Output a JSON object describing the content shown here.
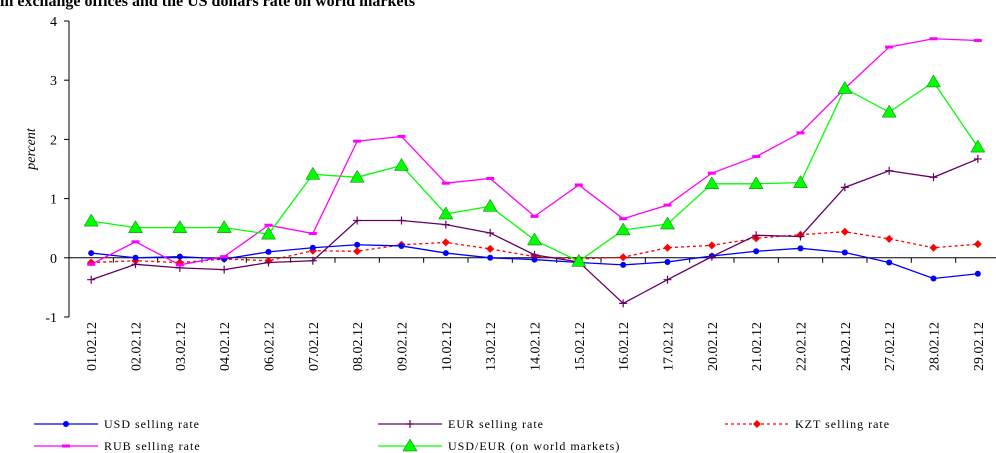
{
  "chart_data": {
    "type": "line",
    "title": "in exchange offices and the US dollars rate on world markets",
    "ylabel": "percent",
    "xlabel": "",
    "ylim": [
      -1,
      4
    ],
    "yticks": [
      -1,
      0,
      1,
      2,
      3,
      4
    ],
    "grid": false,
    "legend_position": "bottom",
    "categories": [
      "01.02.12",
      "02.02.12",
      "03.02.12",
      "04.02.12",
      "06.02.12",
      "07.02.12",
      "08.02.12",
      "09.02.12",
      "10.02.12",
      "13.02.12",
      "14.02.12",
      "15.02.12",
      "16.02.12",
      "17.02.12",
      "20.02.12",
      "21.02.12",
      "22.02.12",
      "24.02.12",
      "27.02.12",
      "28.02.12",
      "29.02.12"
    ],
    "series": [
      {
        "name": "USD selling rate",
        "color": "#0000ff",
        "marker": "circle",
        "dash": "solid",
        "values": [
          0.08,
          0.0,
          0.02,
          -0.02,
          0.1,
          0.17,
          0.22,
          0.2,
          0.08,
          0.0,
          -0.03,
          -0.08,
          -0.12,
          -0.07,
          0.03,
          0.11,
          0.16,
          0.09,
          -0.08,
          -0.35,
          -0.27
        ]
      },
      {
        "name": "EUR selling rate",
        "color": "#660066",
        "marker": "plus",
        "dash": "solid",
        "values": [
          -0.37,
          -0.11,
          -0.17,
          -0.2,
          -0.08,
          -0.05,
          0.63,
          0.63,
          0.56,
          0.42,
          0.05,
          -0.07,
          -0.77,
          -0.37,
          0.02,
          0.38,
          0.36,
          1.19,
          1.47,
          1.36,
          1.67
        ]
      },
      {
        "name": "KZT selling rate",
        "color": "#ff0000",
        "marker": "diamond",
        "dash": "dashed",
        "values": [
          -0.08,
          -0.05,
          -0.08,
          -0.02,
          -0.05,
          0.12,
          0.11,
          0.22,
          0.26,
          0.15,
          0.02,
          -0.02,
          0.01,
          0.17,
          0.21,
          0.33,
          0.39,
          0.44,
          0.32,
          0.17,
          0.23
        ]
      },
      {
        "name": "RUB selling rate",
        "color": "#ff00ff",
        "marker": "dash",
        "dash": "solid",
        "values": [
          -0.11,
          0.27,
          -0.12,
          0.02,
          0.55,
          0.41,
          1.97,
          2.05,
          1.26,
          1.34,
          0.7,
          1.23,
          0.66,
          0.89,
          1.43,
          1.71,
          2.11,
          2.86,
          3.56,
          3.7,
          3.67
        ]
      },
      {
        "name": "USD/EUR (on world markets)",
        "color": "#00ff00",
        "marker": "triangle",
        "dash": "solid",
        "values": [
          0.62,
          0.51,
          0.51,
          0.51,
          0.4,
          1.41,
          1.36,
          1.56,
          0.74,
          0.87,
          0.3,
          -0.06,
          0.47,
          0.57,
          1.25,
          1.25,
          1.27,
          2.86,
          2.46,
          2.97,
          1.87
        ]
      }
    ]
  }
}
